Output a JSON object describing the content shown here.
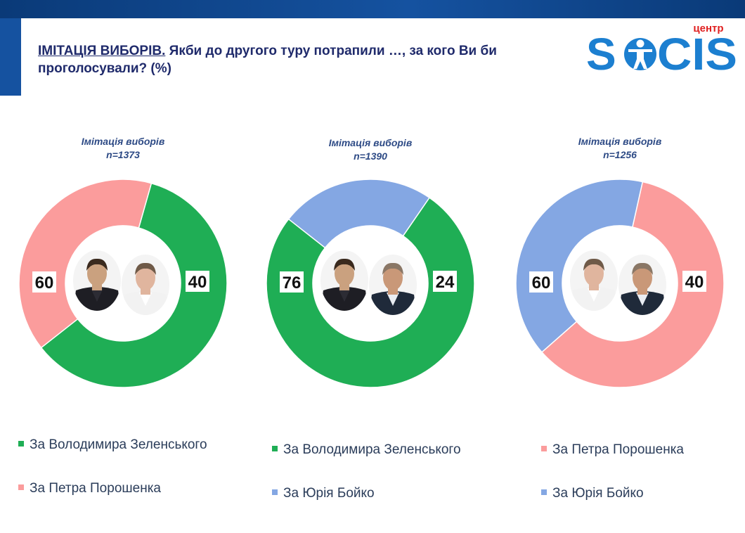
{
  "header": {
    "title_lead": "ІМІТАЦІЯ ВИБОРІВ.",
    "title_rest": "Якби до другого туру потрапили …, за кого Ви би проголосували? (%)",
    "logo_small": "центр",
    "logo_main": "SOCIS"
  },
  "colors": {
    "zelensky": "#1fae55",
    "poroshenko": "#fb9c9c",
    "boyko": "#84a7e3",
    "header_bar": "#1552a0",
    "logo": "#1c7fd0",
    "logo_small": "#e02020"
  },
  "chart_data": [
    {
      "type": "pie",
      "variant": "donut",
      "title": "Імітація виборів",
      "subtitle": "n=1373",
      "slices": [
        {
          "label": "За Володимира Зеленського",
          "value": 60,
          "color": "#1fae55"
        },
        {
          "label": "За Петра Порошенка",
          "value": 40,
          "color": "#fb9c9c"
        }
      ],
      "icons": [
        "zelensky-photo",
        "poroshenko-photo"
      ]
    },
    {
      "type": "pie",
      "variant": "donut",
      "title": "Імітація виборів",
      "subtitle": "n=1390",
      "slices": [
        {
          "label": "За Володимира Зеленського",
          "value": 76,
          "color": "#1fae55"
        },
        {
          "label": "За Юрія Бойко",
          "value": 24,
          "color": "#84a7e3"
        }
      ],
      "icons": [
        "zelensky-photo",
        "boyko-photo"
      ]
    },
    {
      "type": "pie",
      "variant": "donut",
      "title": "Імітація виборів",
      "subtitle": "n=1256",
      "slices": [
        {
          "label": "За Петра Порошенка",
          "value": 60,
          "color": "#fb9c9c"
        },
        {
          "label": "За Юрія Бойко",
          "value": 40,
          "color": "#84a7e3"
        }
      ],
      "icons": [
        "poroshenko-photo",
        "boyko-photo"
      ]
    }
  ]
}
